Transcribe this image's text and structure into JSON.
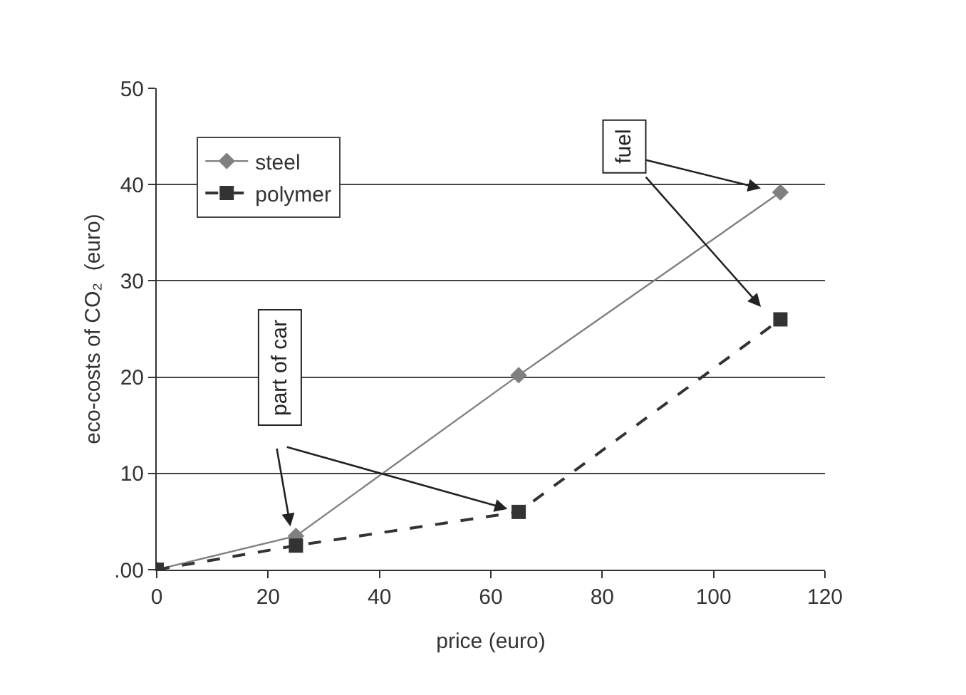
{
  "chart_data": {
    "type": "line",
    "xlabel": "price (euro)",
    "ylabel": "eco-costs of CO₂  (euro)",
    "x": [
      0,
      25,
      65,
      112
    ],
    "series": [
      {
        "name": "steel",
        "color": "#808080",
        "marker": "diamond",
        "line_style": "solid",
        "values": [
          0,
          3.5,
          20.2,
          39.2
        ]
      },
      {
        "name": "polymer",
        "color": "#333333",
        "marker": "square",
        "line_style": "dashed",
        "values": [
          0,
          2.5,
          6,
          26
        ]
      }
    ],
    "xlim": [
      0,
      120
    ],
    "xticks": [
      0,
      20,
      40,
      60,
      80,
      100,
      120
    ],
    "ylim": [
      0,
      50
    ],
    "yticks": [
      {
        "value": 0,
        "label": ".00"
      },
      10,
      20,
      30,
      40,
      50
    ],
    "grid": "y",
    "legend": "top left",
    "annotations": [
      "part of car",
      "fuel"
    ]
  }
}
